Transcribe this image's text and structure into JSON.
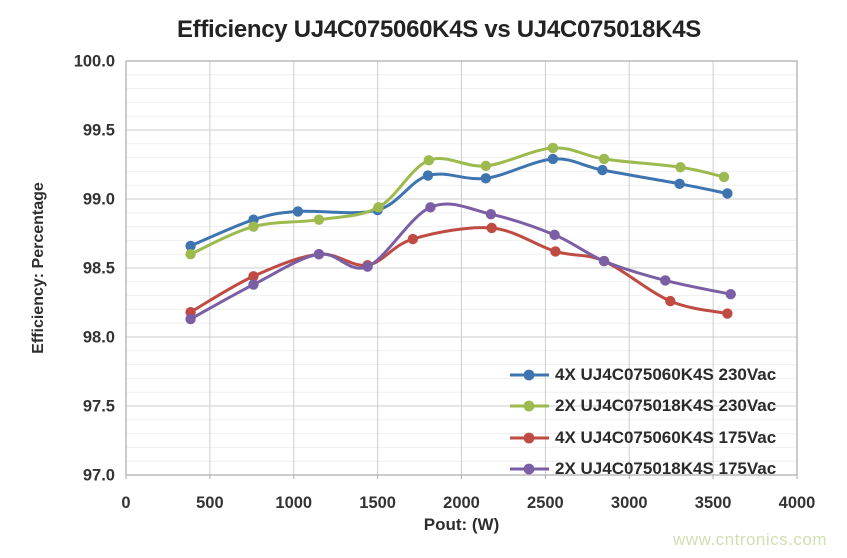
{
  "watermark": {
    "text": "www.cntronics.com",
    "color": "#cfe0b2"
  },
  "chart_data": {
    "type": "line",
    "title": "Efficiency UJ4C075060K4S vs UJ4C075018K4S",
    "xlabel": "Pout: (W)",
    "ylabel": "Efficiency: Percentage",
    "xlim": [
      0,
      4000
    ],
    "ylim": [
      97.0,
      100.0
    ],
    "x_ticks": [
      0,
      500,
      1000,
      1500,
      2000,
      2500,
      3000,
      3500,
      4000
    ],
    "x_tick_labels": [
      "0",
      "500",
      "1000",
      "1500",
      "2000",
      "2500",
      "3000",
      "3500",
      "4000"
    ],
    "y_ticks": [
      97.0,
      97.5,
      98.0,
      98.5,
      99.0,
      99.5,
      100.0
    ],
    "y_tick_labels": [
      "97.0",
      "97.5",
      "98.0",
      "98.5",
      "99.0",
      "99.5",
      "100.0"
    ],
    "y_minor_step": 0.1,
    "grid": "horizontal major+minor, vertical major",
    "legend_position": "inside-bottom-right",
    "smooth_lines": true,
    "series": [
      {
        "name": "4X UJ4C075060K4S 230Vac",
        "color": "#3e74b0",
        "x": [
          385,
          760,
          1025,
          1500,
          1800,
          2145,
          2545,
          2840,
          3300,
          3585
        ],
        "y": [
          98.66,
          98.85,
          98.91,
          98.92,
          99.17,
          99.15,
          99.29,
          99.21,
          99.11,
          99.04
        ]
      },
      {
        "name": "2X UJ4C075018K4S 230Vac",
        "color": "#9cba4e",
        "x": [
          385,
          760,
          1150,
          1505,
          1805,
          2145,
          2545,
          2850,
          3305,
          3565
        ],
        "y": [
          98.6,
          98.8,
          98.85,
          98.94,
          99.28,
          99.24,
          99.37,
          99.29,
          99.23,
          99.16
        ]
      },
      {
        "name": "4X UJ4C075060K4S 175Vac",
        "color": "#bf4b43",
        "x": [
          385,
          760,
          1150,
          1440,
          1710,
          2180,
          2560,
          2850,
          3245,
          3585
        ],
        "y": [
          98.18,
          98.44,
          98.6,
          98.52,
          98.71,
          98.79,
          98.62,
          98.55,
          98.26,
          98.17
        ]
      },
      {
        "name": "2X UJ4C075018K4S 175Vac",
        "color": "#7b5fa5",
        "x": [
          385,
          760,
          1150,
          1440,
          1815,
          2175,
          2555,
          2850,
          3215,
          3605
        ],
        "y": [
          98.13,
          98.38,
          98.6,
          98.51,
          98.94,
          98.89,
          98.74,
          98.55,
          98.41,
          98.31
        ]
      }
    ]
  }
}
